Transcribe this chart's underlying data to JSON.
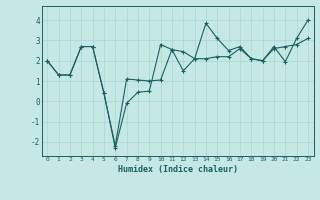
{
  "xlabel": "Humidex (Indice chaleur)",
  "xlim": [
    -0.5,
    23.5
  ],
  "ylim": [
    -2.7,
    4.7
  ],
  "xticks": [
    0,
    1,
    2,
    3,
    4,
    5,
    6,
    7,
    8,
    9,
    10,
    11,
    12,
    13,
    14,
    15,
    16,
    17,
    18,
    19,
    20,
    21,
    22,
    23
  ],
  "yticks": [
    -2,
    -1,
    0,
    1,
    2,
    3,
    4
  ],
  "bg_color": "#c5e8e5",
  "line_color": "#1a6060",
  "grid_color": "#aad4d0",
  "series1_x": [
    0,
    1,
    2,
    3,
    4,
    5,
    6,
    7,
    8,
    9,
    10,
    11,
    12,
    13,
    14,
    15,
    16,
    17,
    18,
    19,
    20,
    21,
    22,
    23
  ],
  "series1_y": [
    2.0,
    1.3,
    1.3,
    2.7,
    2.7,
    0.4,
    -2.2,
    1.1,
    1.05,
    1.0,
    1.05,
    2.55,
    1.5,
    2.1,
    3.85,
    3.1,
    2.5,
    2.7,
    2.1,
    2.0,
    2.7,
    1.95,
    3.1,
    4.0
  ],
  "series2_x": [
    0,
    1,
    2,
    3,
    4,
    5,
    6,
    7,
    8,
    9,
    10,
    11,
    12,
    13,
    14,
    15,
    16,
    17,
    18,
    19,
    20,
    21,
    22,
    23
  ],
  "series2_y": [
    2.0,
    1.3,
    1.3,
    2.7,
    2.7,
    0.4,
    -2.3,
    -0.1,
    0.45,
    0.5,
    2.8,
    2.55,
    2.45,
    2.1,
    2.1,
    2.2,
    2.2,
    2.6,
    2.1,
    2.0,
    2.6,
    2.7,
    2.8,
    3.1
  ]
}
